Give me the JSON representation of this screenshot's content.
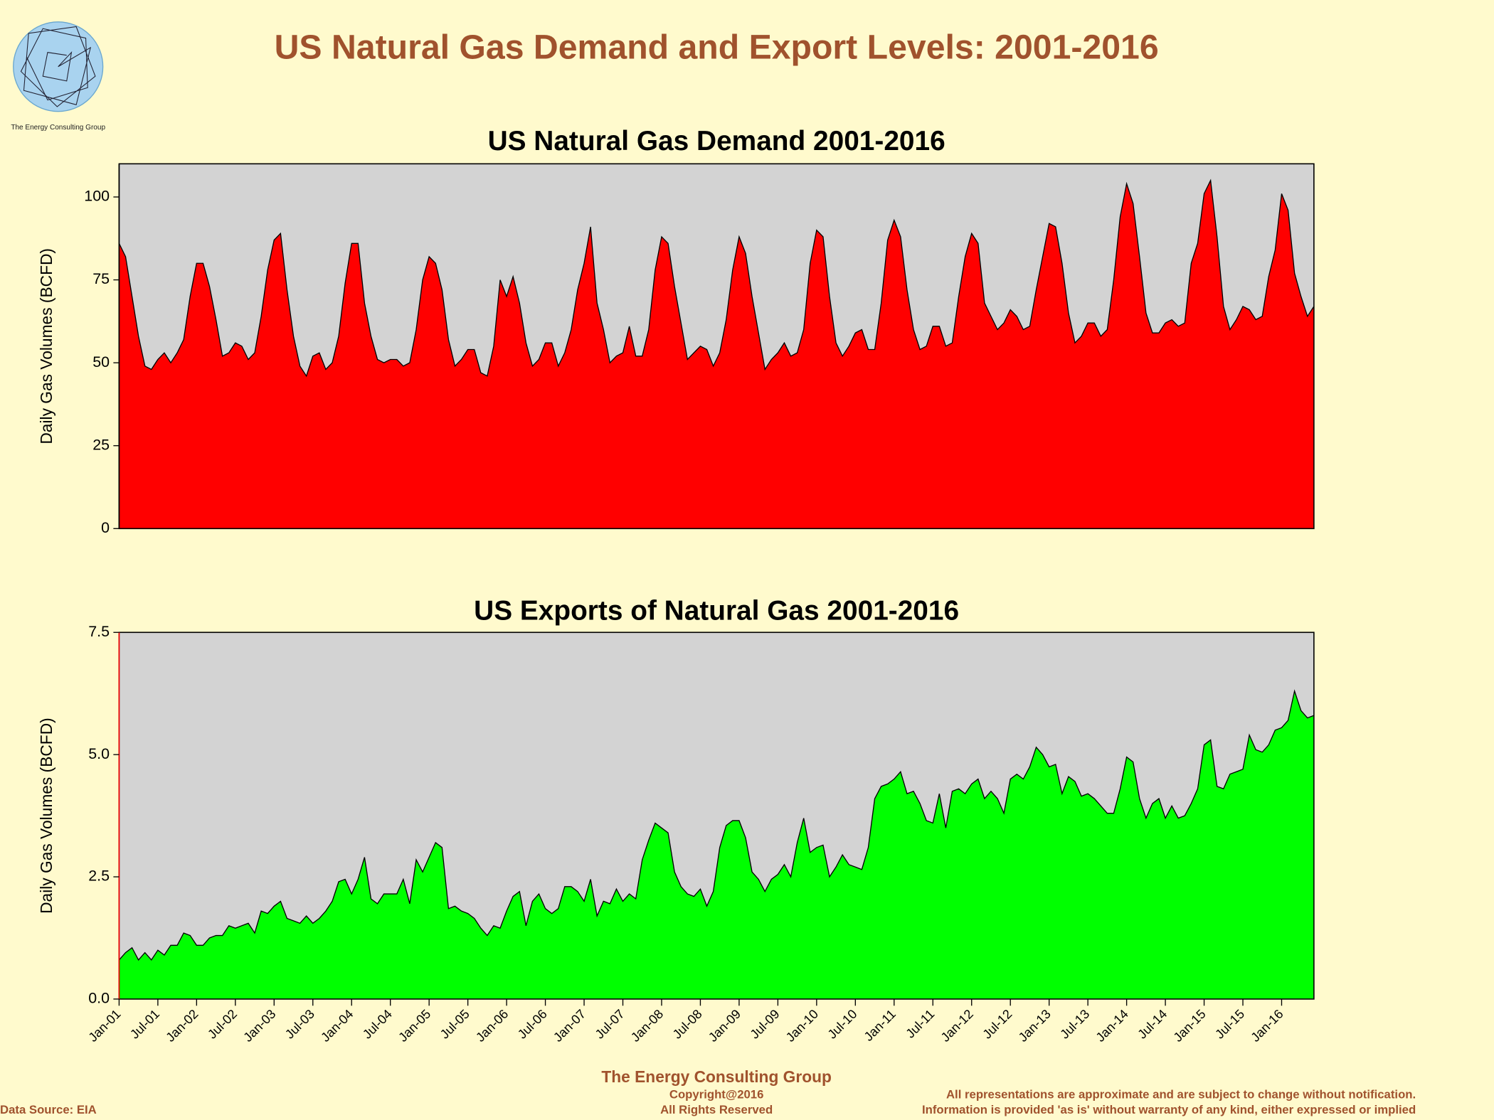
{
  "title": "US Natural Gas Demand and Export Levels: 2001-2016",
  "logo_text": "The Energy Consulting Group",
  "footer": {
    "company": "The Energy Consulting Group",
    "copyright": "Copyright@2016",
    "rights": "All Rights Reserved",
    "source": "Data Source: EIA",
    "disclaimer": [
      "All representations are approximate and are subject to change without notification.",
      "Information is provided 'as is' without warranty of any kind, either expressed or implied"
    ]
  },
  "chart_data": [
    {
      "type": "area",
      "title": "US Natural Gas Demand 2001-2016",
      "ylabel": "Daily Gas Volumes (BCFD)",
      "color": "#ff0000",
      "ylim": [
        0,
        110
      ],
      "yticks": [
        0,
        25,
        50,
        75,
        100
      ],
      "values": [
        86,
        82,
        70,
        58,
        49,
        48,
        51,
        53,
        50,
        53,
        57,
        70,
        80,
        80,
        73,
        63,
        52,
        53,
        56,
        55,
        51,
        53,
        64,
        78,
        87,
        89,
        72,
        58,
        49,
        46,
        52,
        53,
        48,
        50,
        58,
        74,
        86,
        86,
        68,
        58,
        51,
        50,
        51,
        51,
        49,
        50,
        60,
        75,
        82,
        80,
        72,
        57,
        49,
        51,
        54,
        54,
        47,
        46,
        55,
        75,
        70,
        76,
        68,
        56,
        49,
        51,
        56,
        56,
        49,
        53,
        60,
        72,
        80,
        91,
        68,
        60,
        50,
        52,
        53,
        61,
        52,
        52,
        60,
        78,
        88,
        86,
        73,
        62,
        51,
        53,
        55,
        54,
        49,
        53,
        63,
        78,
        88,
        83,
        70,
        59,
        48,
        51,
        53,
        56,
        52,
        53,
        60,
        80,
        90,
        88,
        70,
        56,
        52,
        55,
        59,
        60,
        54,
        54,
        68,
        87,
        93,
        88,
        72,
        60,
        54,
        55,
        61,
        61,
        55,
        56,
        70,
        82,
        89,
        86,
        68,
        64,
        60,
        62,
        66,
        64,
        60,
        61,
        72,
        82,
        92,
        91,
        80,
        65,
        56,
        58,
        62,
        62,
        58,
        60,
        75,
        94,
        104,
        98,
        82,
        65,
        59,
        59,
        62,
        63,
        61,
        62,
        80,
        86,
        101,
        105,
        88,
        67,
        60,
        63,
        67,
        66,
        63,
        64,
        76,
        84,
        101,
        96,
        77,
        70,
        64,
        67
      ]
    },
    {
      "type": "area",
      "title": "US Exports of Natural Gas 2001-2016",
      "ylabel": "Daily Gas Volumes (BCFD)",
      "color": "#00ff00",
      "ylim": [
        0,
        7.5
      ],
      "yticks": [
        {
          "value": 0,
          "label": "0.0"
        },
        2.5,
        {
          "value": 5,
          "label": "5.0"
        },
        7.5
      ],
      "categories": [
        "Jan-01",
        null,
        null,
        null,
        null,
        null,
        "Jul-01",
        null,
        null,
        null,
        null,
        null,
        "Jan-02",
        null,
        null,
        null,
        null,
        null,
        "Jul-02",
        null,
        null,
        null,
        null,
        null,
        "Jan-03",
        null,
        null,
        null,
        null,
        null,
        "Jul-03",
        null,
        null,
        null,
        null,
        null,
        "Jan-04",
        null,
        null,
        null,
        null,
        null,
        "Jul-04",
        null,
        null,
        null,
        null,
        null,
        "Jan-05",
        null,
        null,
        null,
        null,
        null,
        "Jul-05",
        null,
        null,
        null,
        null,
        null,
        "Jan-06",
        null,
        null,
        null,
        null,
        null,
        "Jul-06",
        null,
        null,
        null,
        null,
        null,
        "Jan-07",
        null,
        null,
        null,
        null,
        null,
        "Jul-07",
        null,
        null,
        null,
        null,
        null,
        "Jan-08",
        null,
        null,
        null,
        null,
        null,
        "Jul-08",
        null,
        null,
        null,
        null,
        null,
        "Jan-09",
        null,
        null,
        null,
        null,
        null,
        "Jul-09",
        null,
        null,
        null,
        null,
        null,
        "Jan-10",
        null,
        null,
        null,
        null,
        null,
        "Jul-10",
        null,
        null,
        null,
        null,
        null,
        "Jan-11",
        null,
        null,
        null,
        null,
        null,
        "Jul-11",
        null,
        null,
        null,
        null,
        null,
        "Jan-12",
        null,
        null,
        null,
        null,
        null,
        "Jul-12",
        null,
        null,
        null,
        null,
        null,
        "Jan-13",
        null,
        null,
        null,
        null,
        null,
        "Jul-13",
        null,
        null,
        null,
        null,
        null,
        "Jan-14",
        null,
        null,
        null,
        null,
        null,
        "Jul-14",
        null,
        null,
        null,
        null,
        null,
        "Jan-15",
        null,
        null,
        null,
        null,
        null,
        "Jul-15",
        null,
        null,
        null,
        null,
        null,
        "Jan-16",
        null,
        null,
        null,
        null,
        null
      ],
      "values": [
        0.8,
        0.95,
        1.05,
        0.8,
        0.95,
        0.8,
        1.0,
        0.9,
        1.1,
        1.1,
        1.35,
        1.3,
        1.1,
        1.1,
        1.25,
        1.3,
        1.3,
        1.5,
        1.45,
        1.5,
        1.55,
        1.35,
        1.8,
        1.75,
        1.9,
        2.0,
        1.65,
        1.6,
        1.55,
        1.7,
        1.55,
        1.65,
        1.8,
        2.0,
        2.4,
        2.45,
        2.15,
        2.45,
        2.9,
        2.05,
        1.95,
        2.15,
        2.15,
        2.15,
        2.45,
        1.95,
        2.85,
        2.6,
        2.9,
        3.2,
        3.1,
        1.85,
        1.9,
        1.8,
        1.75,
        1.65,
        1.45,
        1.3,
        1.5,
        1.45,
        1.8,
        2.1,
        2.2,
        1.5,
        2.0,
        2.15,
        1.85,
        1.75,
        1.85,
        2.3,
        2.3,
        2.2,
        2.0,
        2.45,
        1.7,
        2.0,
        1.95,
        2.25,
        2.0,
        2.15,
        2.05,
        2.85,
        3.25,
        3.6,
        3.5,
        3.4,
        2.6,
        2.3,
        2.15,
        2.1,
        2.25,
        1.9,
        2.2,
        3.1,
        3.55,
        3.65,
        3.65,
        3.3,
        2.6,
        2.45,
        2.2,
        2.45,
        2.55,
        2.75,
        2.5,
        3.2,
        3.7,
        3.0,
        3.1,
        3.15,
        2.5,
        2.7,
        2.95,
        2.75,
        2.7,
        2.65,
        3.1,
        4.1,
        4.35,
        4.4,
        4.5,
        4.65,
        4.2,
        4.25,
        4.0,
        3.65,
        3.6,
        4.2,
        3.5,
        4.25,
        4.3,
        4.2,
        4.4,
        4.5,
        4.1,
        4.25,
        4.1,
        3.8,
        4.5,
        4.6,
        4.5,
        4.75,
        5.15,
        5.0,
        4.75,
        4.8,
        4.2,
        4.55,
        4.45,
        4.15,
        4.2,
        4.1,
        3.95,
        3.8,
        3.8,
        4.3,
        4.95,
        4.85,
        4.1,
        3.7,
        4.0,
        4.1,
        3.7,
        3.95,
        3.7,
        3.75,
        4.0,
        4.3,
        5.2,
        5.3,
        4.35,
        4.3,
        4.6,
        4.65,
        4.7,
        5.4,
        5.1,
        5.05,
        5.2,
        5.5,
        5.55,
        5.7,
        6.3,
        5.9,
        5.75,
        5.8
      ]
    }
  ]
}
